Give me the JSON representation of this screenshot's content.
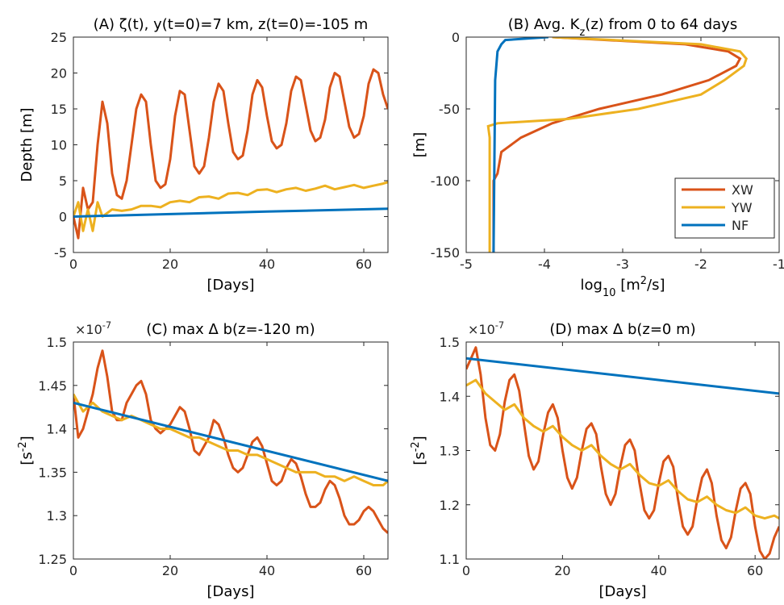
{
  "chart_data": [
    {
      "type": "line",
      "title": [
        "(A) ",
        "ζ(t), y(t=0)=7 km, z(t=0)=-105 m"
      ],
      "xlabel": "[Days]",
      "ylabel": "Depth [m]",
      "xlim": [
        0,
        65
      ],
      "xticks": [
        0,
        20,
        40,
        60
      ],
      "ylim": [
        -5,
        25
      ],
      "yticks": [
        -5,
        0,
        5,
        10,
        15,
        20,
        25
      ],
      "grid": false,
      "series": [
        {
          "color": "#D95319",
          "x": [
            0,
            1,
            2,
            3,
            4,
            5,
            6,
            7,
            8,
            9,
            10,
            11,
            12,
            13,
            14,
            15,
            16,
            17,
            18,
            19,
            20,
            21,
            22,
            23,
            24,
            25,
            26,
            27,
            28,
            29,
            30,
            31,
            32,
            33,
            34,
            35,
            36,
            37,
            38,
            39,
            40,
            41,
            42,
            43,
            44,
            45,
            46,
            47,
            48,
            49,
            50,
            51,
            52,
            53,
            54,
            55,
            56,
            57,
            58,
            59,
            60,
            61,
            62,
            63,
            64,
            65
          ],
          "values": [
            0,
            -3,
            4,
            1,
            2,
            10,
            16,
            13,
            6,
            3,
            2.5,
            5,
            10,
            15,
            17,
            16,
            10,
            5,
            4,
            4.5,
            8,
            14,
            17.5,
            17,
            12,
            7,
            6,
            7,
            11,
            16,
            18.5,
            17.5,
            13,
            9,
            8,
            8.5,
            12,
            17,
            19,
            18,
            14,
            10.5,
            9.5,
            10,
            13,
            17.5,
            19.5,
            19,
            15.5,
            12,
            10.5,
            11,
            13.5,
            18,
            20,
            19.5,
            16,
            12.5,
            11,
            11.5,
            14,
            18.5,
            20.5,
            20,
            17,
            15
          ]
        },
        {
          "color": "#EDB120",
          "x": [
            0,
            1,
            2,
            3,
            4,
            5,
            6,
            8,
            10,
            12,
            14,
            16,
            18,
            20,
            22,
            24,
            26,
            28,
            30,
            32,
            34,
            36,
            38,
            40,
            42,
            44,
            46,
            48,
            50,
            52,
            54,
            56,
            58,
            60,
            62,
            64,
            65
          ],
          "values": [
            0,
            2,
            -2,
            1,
            -2,
            2,
            0,
            1,
            0.8,
            1,
            1.5,
            1.5,
            1.3,
            2,
            2.2,
            2,
            2.7,
            2.8,
            2.5,
            3.2,
            3.3,
            3,
            3.7,
            3.8,
            3.4,
            3.8,
            4,
            3.6,
            3.9,
            4.3,
            3.8,
            4.1,
            4.4,
            4,
            4.3,
            4.6,
            4.8
          ]
        },
        {
          "color": "#0072BD",
          "x": [
            0,
            20,
            40,
            65
          ],
          "values": [
            0,
            0.35,
            0.7,
            1.1
          ]
        }
      ]
    },
    {
      "type": "profile",
      "title": [
        "(B) Avg. K",
        {
          "sub": "z"
        },
        "(z) from 0 to 64 days"
      ],
      "xlabel": [
        "log",
        {
          "sub": "10"
        },
        " [m",
        {
          "sup": "2"
        },
        "/s]"
      ],
      "ylabel": "[m]",
      "xlim": [
        -5,
        -1
      ],
      "xticks": [
        -5,
        -4,
        -3,
        -2,
        -1
      ],
      "ylim": [
        -150,
        0
      ],
      "yticks": [
        -150,
        -100,
        -50,
        0
      ],
      "grid": false,
      "legend": "southeast",
      "series": [
        {
          "name": "XW",
          "color": "#D95319",
          "depth": [
            0,
            -5,
            -10,
            -15,
            -20,
            -30,
            -40,
            -45,
            -50,
            -60,
            -70,
            -78,
            -80,
            -95,
            -100,
            -150
          ],
          "values": [
            -3.9,
            -2.2,
            -1.65,
            -1.5,
            -1.55,
            -1.9,
            -2.5,
            -2.9,
            -3.3,
            -3.9,
            -4.3,
            -4.5,
            -4.55,
            -4.6,
            -4.65,
            -4.65
          ]
        },
        {
          "name": "YW",
          "color": "#EDB120",
          "depth": [
            0,
            -5,
            -10,
            -15,
            -20,
            -30,
            -40,
            -50,
            -57,
            -60,
            -62,
            -70,
            -150
          ],
          "values": [
            -3.9,
            -2.0,
            -1.5,
            -1.42,
            -1.45,
            -1.7,
            -2.0,
            -2.8,
            -3.7,
            -4.6,
            -4.72,
            -4.7,
            -4.7
          ]
        },
        {
          "name": "NF",
          "color": "#0072BD",
          "depth": [
            0,
            -2,
            -5,
            -10,
            -30,
            -150
          ],
          "values": [
            -3.95,
            -4.5,
            -4.55,
            -4.6,
            -4.63,
            -4.65
          ]
        }
      ]
    },
    {
      "type": "line",
      "title": [
        "(C) max   ",
        "Δ",
        " b(z=-120 m)"
      ],
      "exponent": [
        "×10",
        {
          "sup": "-7"
        }
      ],
      "xlabel": "[Days]",
      "ylabel": [
        "[s",
        {
          "sup": "-2"
        },
        "]"
      ],
      "xlim": [
        0,
        65
      ],
      "xticks": [
        0,
        20,
        40,
        60
      ],
      "ylim": [
        1.25,
        1.5
      ],
      "yticks": [
        1.25,
        1.3,
        1.35,
        1.4,
        1.45,
        1.5
      ],
      "grid": false,
      "series": [
        {
          "color": "#D95319",
          "x": [
            0,
            1,
            2,
            3,
            4,
            5,
            6,
            7,
            8,
            9,
            10,
            11,
            12,
            13,
            14,
            15,
            16,
            17,
            18,
            19,
            20,
            21,
            22,
            23,
            24,
            25,
            26,
            27,
            28,
            29,
            30,
            31,
            32,
            33,
            34,
            35,
            36,
            37,
            38,
            39,
            40,
            41,
            42,
            43,
            44,
            45,
            46,
            47,
            48,
            49,
            50,
            51,
            52,
            53,
            54,
            55,
            56,
            57,
            58,
            59,
            60,
            61,
            62,
            63,
            64,
            65
          ],
          "values": [
            1.44,
            1.39,
            1.4,
            1.42,
            1.44,
            1.47,
            1.49,
            1.46,
            1.42,
            1.41,
            1.41,
            1.43,
            1.44,
            1.45,
            1.455,
            1.44,
            1.41,
            1.4,
            1.395,
            1.4,
            1.405,
            1.415,
            1.425,
            1.42,
            1.4,
            1.375,
            1.37,
            1.38,
            1.39,
            1.41,
            1.405,
            1.39,
            1.37,
            1.355,
            1.35,
            1.355,
            1.37,
            1.385,
            1.39,
            1.38,
            1.36,
            1.34,
            1.335,
            1.34,
            1.355,
            1.365,
            1.36,
            1.345,
            1.325,
            1.31,
            1.31,
            1.315,
            1.33,
            1.34,
            1.335,
            1.32,
            1.3,
            1.29,
            1.29,
            1.295,
            1.305,
            1.31,
            1.305,
            1.295,
            1.285,
            1.28
          ]
        },
        {
          "color": "#EDB120",
          "x": [
            0,
            2,
            4,
            6,
            8,
            10,
            12,
            14,
            16,
            18,
            20,
            22,
            24,
            26,
            28,
            30,
            32,
            34,
            36,
            38,
            40,
            42,
            44,
            46,
            48,
            50,
            52,
            54,
            56,
            58,
            60,
            62,
            64,
            65
          ],
          "values": [
            1.44,
            1.42,
            1.43,
            1.42,
            1.415,
            1.41,
            1.415,
            1.41,
            1.405,
            1.4,
            1.4,
            1.395,
            1.39,
            1.39,
            1.385,
            1.38,
            1.375,
            1.375,
            1.37,
            1.37,
            1.365,
            1.36,
            1.355,
            1.35,
            1.35,
            1.35,
            1.345,
            1.345,
            1.34,
            1.345,
            1.34,
            1.335,
            1.335,
            1.34
          ]
        },
        {
          "color": "#0072BD",
          "x": [
            0,
            65
          ],
          "values": [
            1.43,
            1.34
          ]
        }
      ]
    },
    {
      "type": "line",
      "title": [
        "(D) max   ",
        "Δ",
        " b(z=0 m)"
      ],
      "exponent": [
        "×10",
        {
          "sup": "-7"
        }
      ],
      "xlabel": "[Days]",
      "ylabel": [
        "[s",
        {
          "sup": "-2"
        },
        "]"
      ],
      "xlim": [
        0,
        65
      ],
      "xticks": [
        0,
        20,
        40,
        60
      ],
      "ylim": [
        1.1,
        1.5
      ],
      "yticks": [
        1.1,
        1.2,
        1.3,
        1.4,
        1.5
      ],
      "grid": false,
      "series": [
        {
          "color": "#D95319",
          "x": [
            0,
            1,
            2,
            3,
            4,
            5,
            6,
            7,
            8,
            9,
            10,
            11,
            12,
            13,
            14,
            15,
            16,
            17,
            18,
            19,
            20,
            21,
            22,
            23,
            24,
            25,
            26,
            27,
            28,
            29,
            30,
            31,
            32,
            33,
            34,
            35,
            36,
            37,
            38,
            39,
            40,
            41,
            42,
            43,
            44,
            45,
            46,
            47,
            48,
            49,
            50,
            51,
            52,
            53,
            54,
            55,
            56,
            57,
            58,
            59,
            60,
            61,
            62,
            63,
            64,
            65
          ],
          "values": [
            1.45,
            1.47,
            1.49,
            1.44,
            1.36,
            1.31,
            1.3,
            1.33,
            1.39,
            1.43,
            1.44,
            1.41,
            1.35,
            1.29,
            1.265,
            1.28,
            1.33,
            1.37,
            1.385,
            1.36,
            1.3,
            1.25,
            1.23,
            1.25,
            1.3,
            1.34,
            1.35,
            1.33,
            1.27,
            1.22,
            1.2,
            1.22,
            1.27,
            1.31,
            1.32,
            1.3,
            1.24,
            1.19,
            1.175,
            1.19,
            1.24,
            1.28,
            1.29,
            1.27,
            1.21,
            1.16,
            1.145,
            1.16,
            1.21,
            1.25,
            1.265,
            1.24,
            1.18,
            1.135,
            1.12,
            1.14,
            1.19,
            1.23,
            1.24,
            1.22,
            1.16,
            1.115,
            1.1,
            1.11,
            1.14,
            1.16
          ]
        },
        {
          "color": "#EDB120",
          "x": [
            0,
            2,
            4,
            6,
            8,
            10,
            12,
            14,
            16,
            18,
            20,
            22,
            24,
            26,
            28,
            30,
            32,
            34,
            36,
            38,
            40,
            42,
            44,
            46,
            48,
            50,
            52,
            54,
            56,
            58,
            60,
            62,
            64,
            65
          ],
          "values": [
            1.42,
            1.43,
            1.405,
            1.39,
            1.375,
            1.385,
            1.36,
            1.345,
            1.335,
            1.345,
            1.325,
            1.31,
            1.3,
            1.31,
            1.29,
            1.275,
            1.265,
            1.275,
            1.255,
            1.24,
            1.235,
            1.245,
            1.225,
            1.21,
            1.205,
            1.215,
            1.2,
            1.19,
            1.185,
            1.195,
            1.18,
            1.175,
            1.18,
            1.175
          ]
        },
        {
          "color": "#0072BD",
          "x": [
            0,
            65
          ],
          "values": [
            1.47,
            1.405
          ]
        }
      ]
    }
  ]
}
